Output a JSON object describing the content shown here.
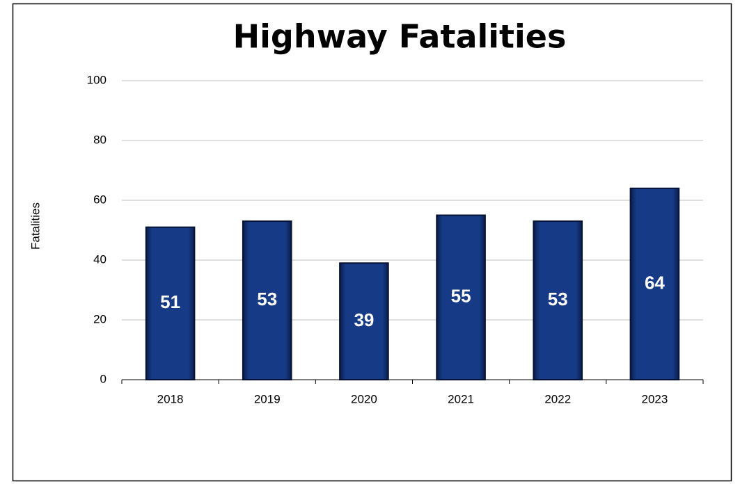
{
  "chart_data": {
    "type": "bar",
    "title": "Highway Fatalities",
    "y_label": "Fatalities",
    "categories": [
      "2018",
      "2019",
      "2020",
      "2021",
      "2022",
      "2023"
    ],
    "values": [
      51,
      53,
      39,
      55,
      53,
      64
    ],
    "color": "#13306f",
    "ylim": [
      0,
      100
    ],
    "yticks": [
      0,
      20,
      40,
      60,
      80,
      100
    ],
    "grid": true
  }
}
